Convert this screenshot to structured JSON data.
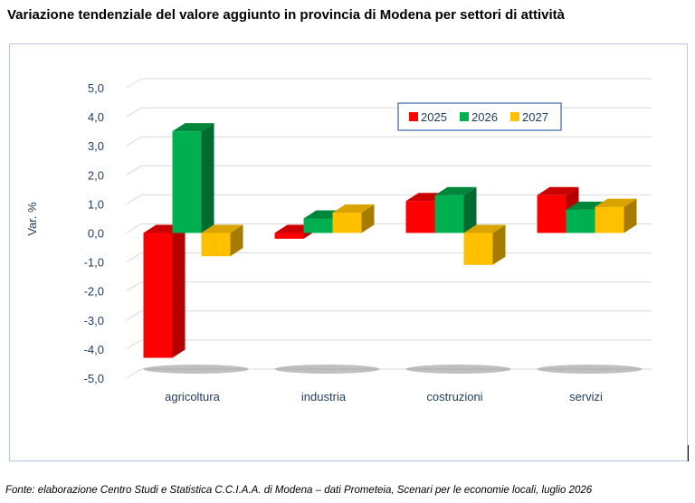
{
  "title": "Variazione tendenziale del valore aggiunto in provincia di Modena per settori di attività",
  "source": "Fonte: elaborazione Centro Studi e Statistica C.C.I.A.A. di Modena – dati Prometeia, Scenari per le economie locali, luglio 2026",
  "chart_data": {
    "type": "bar",
    "title": "Variazione tendenziale del valore aggiunto in provincia di Modena per settori di attività",
    "xlabel": "",
    "ylabel": "Var. %",
    "ylim": [
      -5.0,
      5.0
    ],
    "yticks": [
      "-5,0",
      "-4,0",
      "-3,0",
      "-2,0",
      "-1,0",
      "0,0",
      "1,0",
      "2,0",
      "3,0",
      "4,0",
      "5,0"
    ],
    "grid": true,
    "legend_position": "top-right",
    "categories": [
      "agricoltura",
      "industria",
      "costruzioni",
      "servizi"
    ],
    "series": [
      {
        "name": "2025",
        "color": "#ff0000",
        "side_color": "#b30000",
        "top_color": "#cc0000",
        "values": [
          -4.3,
          -0.2,
          1.1,
          1.3
        ]
      },
      {
        "name": "2026",
        "color": "#00b050",
        "side_color": "#006b30",
        "top_color": "#00873c",
        "values": [
          3.5,
          0.5,
          1.3,
          0.8
        ]
      },
      {
        "name": "2027",
        "color": "#ffc000",
        "side_color": "#a67c00",
        "top_color": "#d9a300",
        "values": [
          -0.8,
          0.7,
          -1.1,
          0.9
        ]
      }
    ]
  }
}
